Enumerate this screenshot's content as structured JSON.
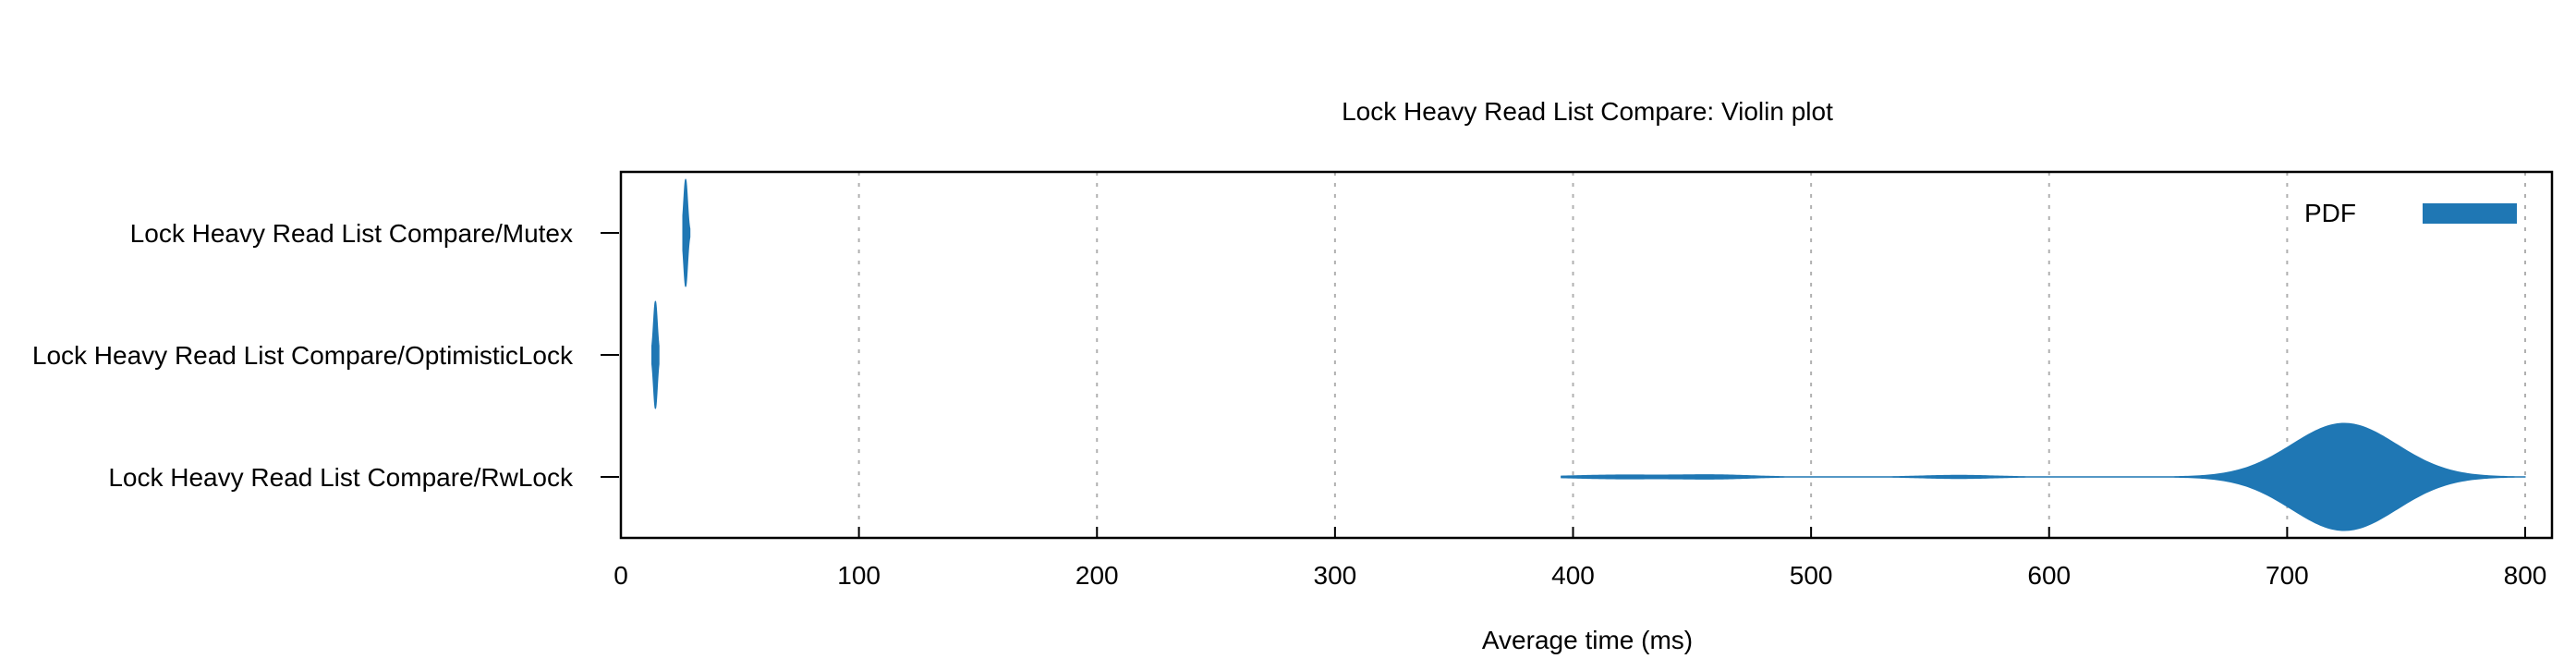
{
  "chart_data": {
    "type": "violin",
    "title": "Lock Heavy Read List Compare: Violin plot",
    "xlabel": "Average time (ms)",
    "ylabel": "",
    "xlim": [
      0,
      810
    ],
    "xticks": [
      0,
      100,
      200,
      300,
      400,
      500,
      600,
      700,
      800
    ],
    "grid": "vertical dashed",
    "legend": {
      "label": "PDF",
      "placement": "top-right"
    },
    "color": "#1f77b4",
    "categories": [
      "Lock Heavy Read List Compare/Mutex",
      "Lock Heavy Read List Compare/OptimisticLock",
      "Lock Heavy Read List Compare/RwLock"
    ],
    "series": [
      {
        "category": "Lock Heavy Read List Compare/Mutex",
        "range": [
          26,
          29
        ],
        "peaks": [
          {
            "x": 27.2,
            "width": 0.8,
            "density": 1.0
          }
        ]
      },
      {
        "category": "Lock Heavy Read List Compare/OptimisticLock",
        "range": [
          13,
          16
        ],
        "peaks": [
          {
            "x": 14.5,
            "width": 0.8,
            "density": 1.0
          }
        ]
      },
      {
        "category": "Lock Heavy Read List Compare/RwLock",
        "range": [
          395,
          800
        ],
        "peaks": [
          {
            "x": 724,
            "width": 22,
            "density": 1.0
          },
          {
            "x": 420,
            "width": 20,
            "density": 0.035
          },
          {
            "x": 460,
            "width": 15,
            "density": 0.035
          },
          {
            "x": 562,
            "width": 15,
            "density": 0.03
          }
        ]
      }
    ]
  }
}
